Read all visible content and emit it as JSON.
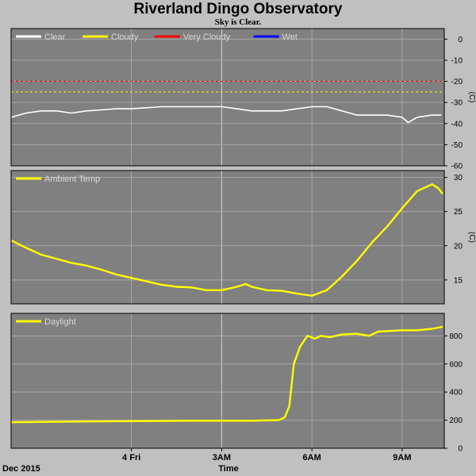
{
  "title": "Riverland Dingo Observatory",
  "subtitle": "Sky is Clear.",
  "x_axis": {
    "date_label": "Dec 2015",
    "label": "Time"
  },
  "chart_data": [
    {
      "type": "line",
      "panel": "sky",
      "ylabel": "(C)",
      "ylim": [
        -60,
        5
      ],
      "yticks": [
        0,
        -10,
        -20,
        -30,
        -40,
        -50,
        -60
      ],
      "threshold_lines": [
        {
          "y": -20,
          "color": "#ff0000"
        },
        {
          "y": -25,
          "color": "#ffff00"
        }
      ],
      "legend": [
        {
          "name": "Clear",
          "color": "#ffffff"
        },
        {
          "name": "Cloudy",
          "color": "#ffff00"
        },
        {
          "name": "Very Cloudy",
          "color": "#ff0000"
        },
        {
          "name": "Wet",
          "color": "#0000ff"
        }
      ],
      "series": [
        {
          "name": "Clear",
          "color": "#ffffff",
          "points": [
            [
              -4,
              -37
            ],
            [
              -3.5,
              -35
            ],
            [
              -3,
              -34
            ],
            [
              -2.5,
              -34
            ],
            [
              -2,
              -35
            ],
            [
              -1.5,
              -34
            ],
            [
              -1,
              -33.5
            ],
            [
              -0.5,
              -33
            ],
            [
              0,
              -33
            ],
            [
              0.5,
              -32.5
            ],
            [
              1,
              -32
            ],
            [
              1.5,
              -32
            ],
            [
              2,
              -32
            ],
            [
              2.5,
              -32
            ],
            [
              3,
              -32
            ],
            [
              3.5,
              -33
            ],
            [
              4,
              -34
            ],
            [
              4.5,
              -34
            ],
            [
              5,
              -34
            ],
            [
              5.5,
              -33
            ],
            [
              6,
              -32
            ],
            [
              6.5,
              -32
            ],
            [
              7,
              -34
            ],
            [
              7.5,
              -36
            ],
            [
              8,
              -36
            ],
            [
              8.5,
              -36
            ],
            [
              9,
              -37
            ],
            [
              9.2,
              -39.5
            ],
            [
              9.5,
              -37
            ],
            [
              10,
              -36
            ],
            [
              10.3,
              -36
            ]
          ]
        }
      ]
    },
    {
      "type": "line",
      "panel": "ambient",
      "ylabel": "(C)",
      "ylim": [
        11.5,
        31
      ],
      "yticks": [
        30,
        25,
        20,
        15
      ],
      "legend": [
        {
          "name": "Ambient Temp",
          "color": "#ffff00"
        }
      ],
      "series": [
        {
          "name": "Ambient Temp",
          "color": "#ffff00",
          "points": [
            [
              -4,
              20.8
            ],
            [
              -3.5,
              19.7
            ],
            [
              -3,
              18.7
            ],
            [
              -2.5,
              18.1
            ],
            [
              -2,
              17.5
            ],
            [
              -1.5,
              17.1
            ],
            [
              -1,
              16.5
            ],
            [
              -0.5,
              15.8
            ],
            [
              0,
              15.3
            ],
            [
              0.5,
              14.8
            ],
            [
              1,
              14.3
            ],
            [
              1.5,
              14.0
            ],
            [
              2,
              13.9
            ],
            [
              2.5,
              13.5
            ],
            [
              3,
              13.5
            ],
            [
              3.5,
              14.0
            ],
            [
              3.8,
              14.4
            ],
            [
              4,
              14.0
            ],
            [
              4.5,
              13.5
            ],
            [
              5,
              13.4
            ],
            [
              5.5,
              13.0
            ],
            [
              6,
              12.7
            ],
            [
              6.5,
              13.5
            ],
            [
              7,
              15.5
            ],
            [
              7.5,
              17.8
            ],
            [
              8,
              20.5
            ],
            [
              8.5,
              22.8
            ],
            [
              9,
              25.5
            ],
            [
              9.5,
              28.0
            ],
            [
              10,
              29.0
            ],
            [
              10.2,
              28.4
            ],
            [
              10.35,
              27.6
            ]
          ]
        }
      ]
    },
    {
      "type": "line",
      "panel": "daylight",
      "ylim": [
        0,
        960
      ],
      "yticks": [
        800,
        600,
        400,
        200,
        0
      ],
      "legend": [
        {
          "name": "Daylight",
          "color": "#ffff00"
        }
      ],
      "series": [
        {
          "name": "Daylight",
          "color": "#ffff00",
          "points": [
            [
              -4,
              185
            ],
            [
              -2,
              190
            ],
            [
              0,
              193
            ],
            [
              2,
              196
            ],
            [
              4,
              196
            ],
            [
              4.9,
              200
            ],
            [
              5.1,
              220
            ],
            [
              5.25,
              300
            ],
            [
              5.4,
              600
            ],
            [
              5.6,
              720
            ],
            [
              5.85,
              800
            ],
            [
              6.1,
              780
            ],
            [
              6.3,
              800
            ],
            [
              6.6,
              790
            ],
            [
              7,
              810
            ],
            [
              7.5,
              815
            ],
            [
              7.9,
              800
            ],
            [
              8.2,
              830
            ],
            [
              9,
              840
            ],
            [
              9.5,
              840
            ],
            [
              10,
              850
            ],
            [
              10.35,
              865
            ]
          ]
        }
      ]
    }
  ],
  "x_ticks": [
    {
      "x": 0,
      "label": "4 Fri"
    },
    {
      "x": 3,
      "label": "3AM"
    },
    {
      "x": 6,
      "label": "6AM"
    },
    {
      "x": 9,
      "label": "9AM"
    }
  ]
}
